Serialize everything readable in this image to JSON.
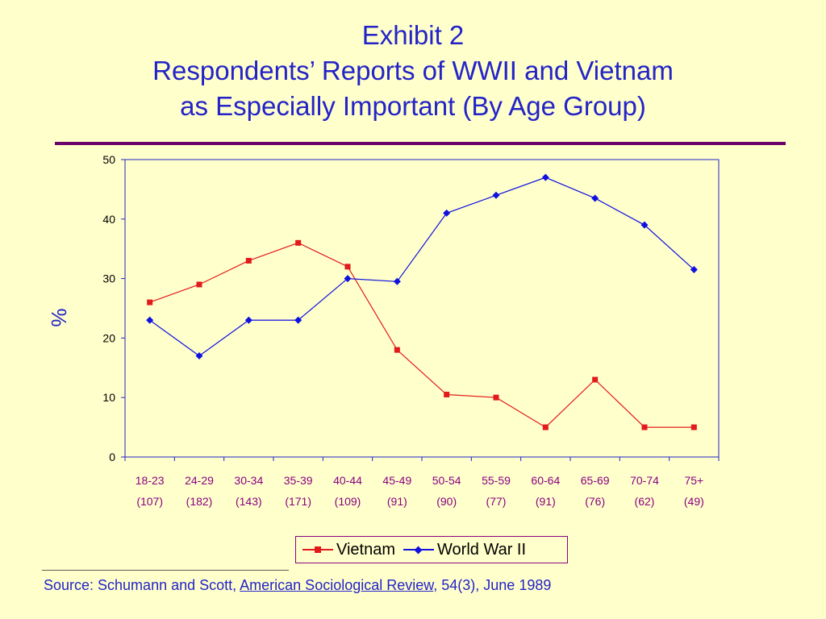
{
  "title": {
    "line1": "Exhibit 2",
    "line2": "Respondents’ Reports of WWII and Vietnam",
    "line3": "as Especially Important (By Age Group)"
  },
  "chart_data": {
    "type": "line",
    "ylabel": "%",
    "ylim": [
      0,
      50
    ],
    "yticks": [
      0,
      10,
      20,
      30,
      40,
      50
    ],
    "categories": [
      "18-23",
      "24-29",
      "30-34",
      "35-39",
      "40-44",
      "45-49",
      "50-54",
      "55-59",
      "60-64",
      "65-69",
      "70-74",
      "75+"
    ],
    "sample_sizes": [
      "(107)",
      "(182)",
      "(143)",
      "(171)",
      "(109)",
      "(91)",
      "(90)",
      "(77)",
      "(91)",
      "(76)",
      "(62)",
      "(49)"
    ],
    "grid": false,
    "legend_position": "bottom",
    "series": [
      {
        "name": "Vietnam",
        "color": "#E31A1C",
        "marker": "square",
        "values": [
          26,
          29,
          33,
          36,
          32,
          18,
          10.5,
          10,
          5,
          13,
          5,
          5
        ]
      },
      {
        "name": "World War II",
        "color": "#1010E0",
        "marker": "diamond",
        "values": [
          23,
          17,
          23,
          23,
          30,
          29.5,
          41,
          44,
          47,
          43.5,
          39,
          31.5
        ]
      }
    ]
  },
  "source": {
    "prefix": "Source:  Schumann and Scott, ",
    "journal": "American Sociological Review",
    "suffix": ", 54(3), June 1989"
  }
}
